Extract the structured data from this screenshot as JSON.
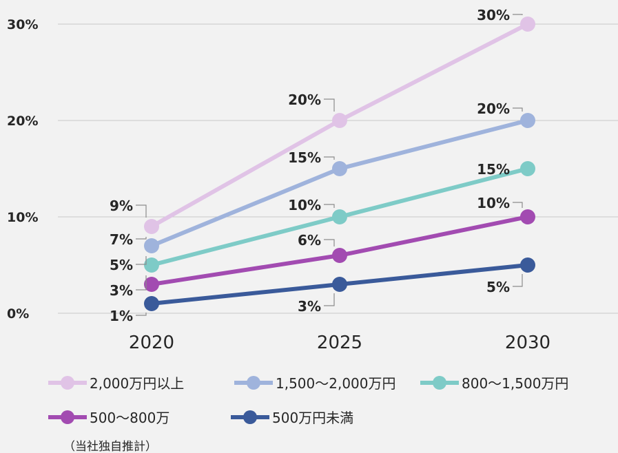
{
  "chart_data": {
    "type": "line",
    "x": [
      "2020",
      "2025",
      "2030"
    ],
    "ylim": [
      0,
      30
    ],
    "yticks": [
      "0%",
      "10%",
      "20%",
      "30%"
    ],
    "grid": true,
    "legend_position": "bottom",
    "series": [
      {
        "name": "2,000万円以上",
        "values": [
          9,
          20,
          30
        ],
        "labels": [
          "9%",
          "20%",
          "30%"
        ],
        "color": "#e0c3e6"
      },
      {
        "name": "1,500～2,000万円",
        "values": [
          7,
          15,
          20
        ],
        "labels": [
          "7%",
          "15%",
          "20%"
        ],
        "color": "#9fb3dc"
      },
      {
        "name": "800～1,500万円",
        "values": [
          5,
          10,
          15
        ],
        "labels": [
          "5%",
          "10%",
          "15%"
        ],
        "color": "#7ecbc7"
      },
      {
        "name": "500～800万",
        "values": [
          3,
          6,
          10
        ],
        "labels": [
          "3%",
          "6%",
          "10%"
        ],
        "color": "#a24bb1"
      },
      {
        "name": "500万円未満",
        "values": [
          1,
          3,
          5
        ],
        "labels": [
          "1%",
          "3%",
          "5%"
        ],
        "color": "#3a5a9a"
      }
    ],
    "note": "（当社独自推計）"
  }
}
